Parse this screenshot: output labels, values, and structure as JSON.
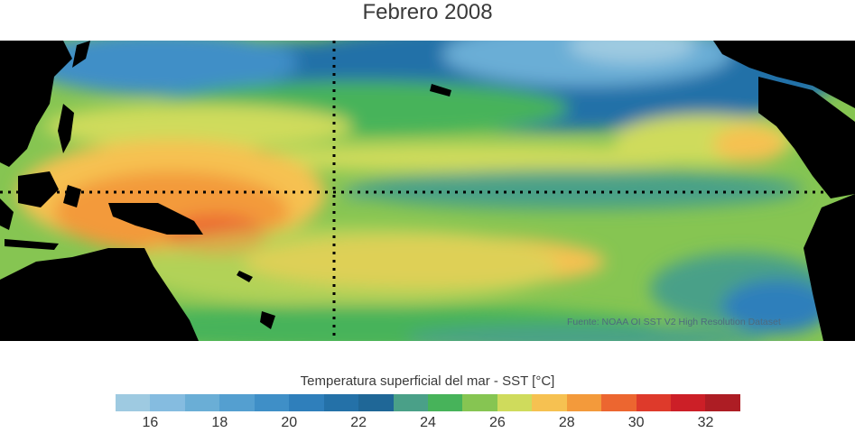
{
  "title": "Febrero 2008",
  "source_credit": "Fuente: NOAA OI SST V2 High Resolution Dataset",
  "colorbar": {
    "title": "Temperatura superficial del mar - SST  [°C]",
    "min": 15,
    "max": 33,
    "colors": [
      "#9ecae1",
      "#85bce0",
      "#6aaed6",
      "#549fd0",
      "#3f8fc7",
      "#2f7fbb",
      "#2471a8",
      "#1f6797",
      "#4aa088",
      "#47b35a",
      "#86c552",
      "#cfdb5c",
      "#f6c151",
      "#f39a3b",
      "#ec6630",
      "#de3a2b",
      "#cc1f27",
      "#ad1d24"
    ],
    "ticks": [
      "16",
      "18",
      "20",
      "22",
      "24",
      "26",
      "28",
      "30",
      "32"
    ],
    "tick_values": [
      16,
      18,
      20,
      22,
      24,
      26,
      28,
      30,
      32
    ]
  },
  "map_data": {
    "type": "heatmap",
    "description_region": "Pacific Ocean sea surface temperature",
    "equator_line": true,
    "dateline_meridian": true,
    "land_color": "#000000"
  }
}
